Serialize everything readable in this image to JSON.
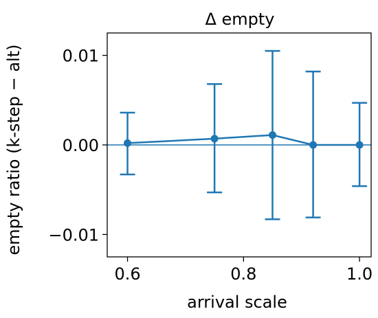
{
  "chart_data": {
    "type": "line",
    "title": "Δ empty",
    "xlabel": "arrival scale",
    "ylabel": "empty ratio (k-step − alt)",
    "xlim": [
      0.565,
      1.02
    ],
    "ylim": [
      -0.0125,
      0.0125
    ],
    "xticks": [
      0.6,
      0.8,
      1.0
    ],
    "xtick_labels": [
      "0.6",
      "0.8",
      "1.0"
    ],
    "yticks": [
      -0.01,
      0.0,
      0.01
    ],
    "ytick_labels": [
      "−0.01",
      "0.00",
      "0.01"
    ],
    "grid": false,
    "reference_line_y": 0.0,
    "series": [
      {
        "color": "#1f77b4",
        "x": [
          0.6,
          0.75,
          0.85,
          0.92,
          1.0
        ],
        "y": [
          0.0002,
          0.0007,
          0.0011,
          0.0,
          0.0
        ],
        "y_lower": [
          -0.0033,
          -0.0053,
          -0.0083,
          -0.0081,
          -0.0046
        ],
        "y_upper": [
          0.0036,
          0.0068,
          0.0105,
          0.0082,
          0.0047
        ]
      }
    ]
  }
}
